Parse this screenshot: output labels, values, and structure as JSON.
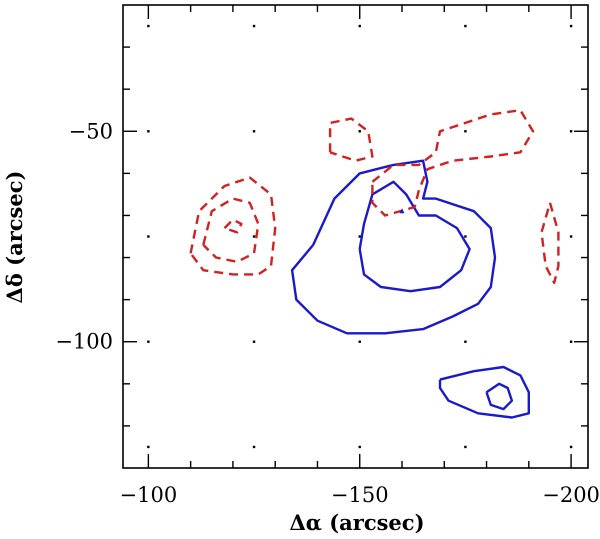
{
  "chart_data": {
    "type": "contour",
    "xlabel": "Δα (arcsec)",
    "ylabel": "Δδ (arcsec)",
    "xlim": [
      -94,
      -204
    ],
    "ylim": [
      -130,
      -20
    ],
    "x_tick_labels": [
      "−100",
      "−150",
      "−200"
    ],
    "x_ticks": [
      -100,
      -150,
      -200
    ],
    "y_tick_labels": [
      "−50",
      "−100"
    ],
    "y_ticks": [
      -50,
      -100
    ],
    "grid": "dotted-points",
    "grid_points": {
      "x": [
        -100,
        -125,
        -150,
        -175,
        -200
      ],
      "y": [
        -25,
        -50,
        -75,
        -100,
        -125
      ]
    },
    "series": [
      {
        "color": "#1a1acc",
        "style": "solid",
        "contours": [
          [
            [
              -139,
              -77
            ],
            [
              -144,
              -66
            ],
            [
              -150,
              -60
            ],
            [
              -158,
              -58
            ],
            [
              -165,
              -57
            ],
            [
              -166,
              -62
            ],
            [
              -165,
              -66
            ],
            [
              -168,
              -66
            ],
            [
              -177,
              -69
            ],
            [
              -181,
              -73
            ],
            [
              -182,
              -80
            ],
            [
              -181,
              -87
            ],
            [
              -178,
              -91
            ],
            [
              -172,
              -94
            ],
            [
              -165,
              -97
            ],
            [
              -156,
              -98
            ],
            [
              -147,
              -98
            ],
            [
              -140,
              -95
            ],
            [
              -135,
              -90
            ],
            [
              -134,
              -83
            ],
            [
              -139,
              -77
            ]
          ],
          [
            [
              -150,
              -78
            ],
            [
              -151,
              -72
            ],
            [
              -153,
              -65
            ],
            [
              -158,
              -62
            ],
            [
              -161,
              -65
            ],
            [
              -164,
              -70
            ],
            [
              -168,
              -70
            ],
            [
              -173,
              -73
            ],
            [
              -176,
              -78
            ],
            [
              -174,
              -83
            ],
            [
              -169,
              -87
            ],
            [
              -162,
              -88
            ],
            [
              -155,
              -87
            ],
            [
              -151,
              -84
            ],
            [
              -150,
              -78
            ]
          ],
          [
            [
              -169,
              -109
            ],
            [
              -177,
              -107
            ],
            [
              -184,
              -106
            ],
            [
              -188,
              -108
            ],
            [
              -190,
              -112
            ],
            [
              -190,
              -117
            ],
            [
              -186,
              -118
            ],
            [
              -178,
              -117
            ],
            [
              -171,
              -114
            ],
            [
              -169,
              -111
            ],
            [
              -169,
              -109
            ]
          ],
          [
            [
              -180,
              -112
            ],
            [
              -183,
              -110
            ],
            [
              -185,
              -111
            ],
            [
              -186,
              -114
            ],
            [
              -184,
              -116
            ],
            [
              -181,
              -115
            ],
            [
              -180,
              -112
            ]
          ]
        ]
      },
      {
        "color": "#d42020",
        "style": "dashed",
        "contours": [
          [
            [
              -110,
              -79
            ],
            [
              -112,
              -69
            ],
            [
              -118,
              -63
            ],
            [
              -124,
              -61
            ],
            [
              -129,
              -65
            ],
            [
              -130,
              -73
            ],
            [
              -129,
              -82
            ],
            [
              -126,
              -84
            ],
            [
              -120,
              -84
            ],
            [
              -113,
              -83
            ],
            [
              -110,
              -79
            ]
          ],
          [
            [
              -113,
              -77
            ],
            [
              -115,
              -69
            ],
            [
              -120,
              -66
            ],
            [
              -124,
              -67
            ],
            [
              -126,
              -72
            ],
            [
              -125,
              -79
            ],
            [
              -121,
              -81
            ],
            [
              -116,
              -80
            ],
            [
              -113,
              -77
            ]
          ],
          [
            [
              -118,
              -73
            ],
            [
              -120,
              -71
            ],
            [
              -122,
              -72
            ],
            [
              -121,
              -74
            ],
            [
              -118,
              -73
            ]
          ],
          [
            [
              -143,
              -55
            ],
            [
              -143,
              -48
            ],
            [
              -148,
              -47
            ],
            [
              -152,
              -50
            ],
            [
              -153,
              -56
            ],
            [
              -149,
              -57
            ],
            [
              -143,
              -55
            ]
          ],
          [
            [
              -153,
              -62
            ],
            [
              -158,
              -58
            ],
            [
              -164,
              -58
            ],
            [
              -168,
              -55
            ],
            [
              -169,
              -50
            ],
            [
              -175,
              -48
            ],
            [
              -181,
              -46
            ],
            [
              -188,
              -45
            ],
            [
              -191,
              -50
            ],
            [
              -188,
              -55
            ],
            [
              -181,
              -56
            ],
            [
              -172,
              -57
            ],
            [
              -166,
              -59
            ],
            [
              -164,
              -64
            ],
            [
              -163,
              -68
            ],
            [
              -156,
              -70
            ],
            [
              -153,
              -67
            ],
            [
              -153,
              -62
            ]
          ],
          [
            [
              -195,
              -67
            ],
            [
              -197,
              -74
            ],
            [
              -197,
              -82
            ],
            [
              -196,
              -86
            ],
            [
              -194,
              -82
            ],
            [
              -193,
              -74
            ],
            [
              -195,
              -67
            ]
          ]
        ]
      }
    ],
    "annotations": [
      {
        "x": -160,
        "y": -69,
        "kind": "small-triangle",
        "color": "#1a1acc"
      }
    ]
  }
}
